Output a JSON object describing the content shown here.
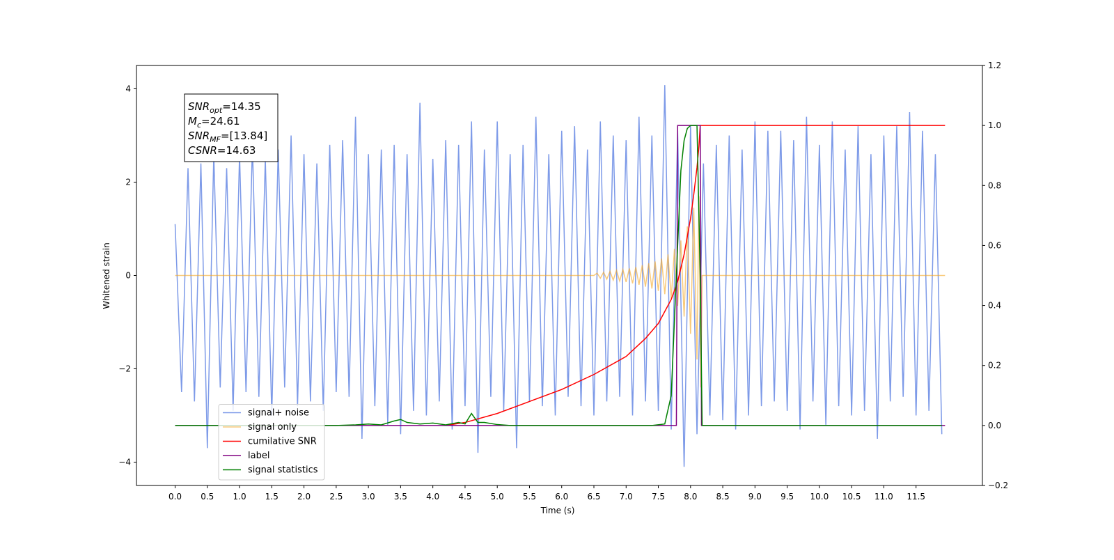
{
  "chart_data": {
    "type": "line",
    "xlabel": "Time (s)",
    "ylabel": "Whitened strain",
    "xlim": [
      -0.6,
      12.53
    ],
    "ylim": [
      -4.5,
      4.5
    ],
    "y2lim": [
      -0.2,
      1.2
    ],
    "xticks": [
      {
        "value": 0,
        "label": "0.0"
      },
      0.5,
      {
        "value": 1,
        "label": "1.0"
      },
      1.5,
      {
        "value": 2,
        "label": "2.0"
      },
      2.5,
      {
        "value": 3,
        "label": "3.0"
      },
      3.5,
      {
        "value": 4,
        "label": "4.0"
      },
      4.5,
      {
        "value": 5,
        "label": "5.0"
      },
      5.5,
      {
        "value": 6,
        "label": "6.0"
      },
      6.5,
      {
        "value": 7,
        "label": "7.0"
      },
      7.5,
      {
        "value": 8,
        "label": "8.0"
      },
      8.5,
      {
        "value": 9,
        "label": "9.0"
      },
      9.5,
      {
        "value": 10,
        "label": "10.0"
      },
      10.5,
      {
        "value": 11,
        "label": "11.0"
      },
      11.5
    ],
    "yticks": [
      {
        "value": -4,
        "label": "−4"
      },
      {
        "value": -2,
        "label": "−2"
      },
      0,
      2,
      4
    ],
    "y2ticks": [
      {
        "value": -0.2,
        "label": "−0.2"
      },
      {
        "value": 0,
        "label": "0.0"
      },
      0.2,
      0.4,
      0.6,
      0.8,
      {
        "value": 1,
        "label": "1.0"
      },
      1.2
    ],
    "annotations": [
      {
        "base": "SNR",
        "sub": "opt",
        "text": "=14.35"
      },
      {
        "base": "M",
        "sub": "c",
        "text": "=24.61"
      },
      {
        "base": "SNR",
        "sub": "MF",
        "text": "=[13.84]"
      },
      {
        "base": "CSNR",
        "text": "=14.63"
      }
    ],
    "legend": "lower left",
    "series": [
      {
        "name": "signal+ noise",
        "color": "#6f8fe6",
        "opacity": 0.9,
        "x": [
          0,
          0.1,
          0.2,
          0.3,
          0.4,
          0.5,
          0.6,
          0.7,
          0.8,
          0.9,
          1,
          1.1,
          1.2,
          1.3,
          1.4,
          1.5,
          1.6,
          1.7,
          1.8,
          1.9,
          2,
          2.1,
          2.2,
          2.3,
          2.4,
          2.5,
          2.6,
          2.7,
          2.8,
          2.9,
          3,
          3.1,
          3.2,
          3.3,
          3.4,
          3.5,
          3.6,
          3.7,
          3.8,
          3.9,
          4,
          4.1,
          4.2,
          4.3,
          4.4,
          4.5,
          4.6,
          4.7,
          4.8,
          4.9,
          5,
          5.1,
          5.2,
          5.3,
          5.4,
          5.5,
          5.6,
          5.7,
          5.8,
          5.9,
          6,
          6.1,
          6.2,
          6.3,
          6.4,
          6.5,
          6.6,
          6.7,
          6.8,
          6.9,
          7,
          7.1,
          7.2,
          7.3,
          7.4,
          7.5,
          7.6,
          7.7,
          7.8,
          7.9,
          8,
          8.1,
          8.2,
          8.3,
          8.4,
          8.5,
          8.6,
          8.7,
          8.8,
          8.9,
          9,
          9.1,
          9.2,
          9.3,
          9.4,
          9.5,
          9.6,
          9.7,
          9.8,
          9.9,
          10,
          10.1,
          10.2,
          10.3,
          10.4,
          10.5,
          10.6,
          10.7,
          10.8,
          10.9,
          11,
          11.1,
          11.2,
          11.3,
          11.4,
          11.5,
          11.6,
          11.7,
          11.8,
          11.9
        ],
        "values": [
          1.1,
          -2.5,
          2.3,
          -2.7,
          2.4,
          -3.7,
          2.6,
          -2.4,
          2.3,
          -2.9,
          2.6,
          -2.5,
          2.8,
          -2.6,
          2.5,
          -3.0,
          2.7,
          -2.4,
          3.0,
          -2.8,
          2.6,
          -2.7,
          2.4,
          -2.9,
          2.8,
          -2.5,
          2.9,
          -2.6,
          3.4,
          -3.5,
          2.6,
          -2.8,
          2.7,
          -3.2,
          2.8,
          -3.4,
          2.6,
          -2.9,
          3.7,
          -3.0,
          2.5,
          -2.7,
          2.9,
          -3.3,
          2.8,
          -2.8,
          3.3,
          -3.8,
          2.7,
          -2.6,
          3.3,
          -2.9,
          2.6,
          -3.7,
          2.8,
          -2.7,
          3.4,
          -2.8,
          2.6,
          -3.0,
          3.1,
          -2.6,
          3.2,
          -2.8,
          2.7,
          -3.0,
          3.3,
          -2.7,
          3.0,
          -2.6,
          2.9,
          -3.0,
          3.4,
          -2.7,
          3.0,
          -2.9,
          4.08,
          -3.3,
          3.1,
          -4.1,
          3.2,
          -3.4,
          2.4,
          -3.0,
          2.8,
          -3.1,
          3.0,
          -3.3,
          2.7,
          -3.0,
          3.3,
          -2.8,
          3.1,
          -2.7,
          3.1,
          -2.9,
          2.9,
          -3.3,
          3.4,
          -2.7,
          2.8,
          -3.2,
          3.3,
          -2.8,
          2.7,
          -3.0,
          3.2,
          -2.9,
          2.6,
          -3.5,
          3.0,
          -2.7,
          3.2,
          -2.6,
          3.5,
          -3.0,
          3.1,
          -2.9,
          2.6,
          -3.4
        ]
      },
      {
        "name": "signal only",
        "color": "#f5a623",
        "opacity": 0.6,
        "x": [
          0,
          6.5,
          6.55,
          6.6,
          6.65,
          6.7,
          6.75,
          6.8,
          6.85,
          6.9,
          6.95,
          7,
          7.05,
          7.1,
          7.15,
          7.2,
          7.25,
          7.3,
          7.35,
          7.4,
          7.45,
          7.5,
          7.55,
          7.6,
          7.65,
          7.7,
          7.75,
          7.8,
          7.85,
          7.9,
          7.95,
          8,
          8.05,
          8.1,
          8.13,
          8.16,
          8.18,
          11.95
        ],
        "values": [
          0,
          0,
          0.05,
          -0.06,
          0.07,
          -0.08,
          0.09,
          -0.1,
          0.11,
          -0.12,
          0.13,
          -0.14,
          0.15,
          -0.17,
          0.18,
          -0.2,
          0.22,
          -0.24,
          0.26,
          -0.28,
          0.3,
          -0.33,
          0.36,
          -0.4,
          0.45,
          -0.5,
          0.57,
          -0.65,
          0.75,
          -0.88,
          1.05,
          -1.25,
          1.45,
          -1.8,
          1.7,
          -2.4,
          0,
          0
        ]
      },
      {
        "name": "cumilative SNR",
        "color": "#ff0000",
        "axis": "y2",
        "x": [
          4.2,
          4.5,
          5,
          5.5,
          6,
          6.5,
          7,
          7.3,
          7.5,
          7.7,
          7.8,
          7.9,
          8,
          8.05,
          8.1,
          8.13,
          8.15,
          11.95
        ],
        "values": [
          0,
          0.01,
          0.04,
          0.08,
          0.12,
          0.17,
          0.23,
          0.29,
          0.34,
          0.42,
          0.48,
          0.57,
          0.69,
          0.77,
          0.86,
          0.93,
          1,
          1
        ]
      },
      {
        "name": "label",
        "color": "#800080",
        "axis": "y2",
        "x": [
          0,
          7.78,
          7.8,
          8.15,
          8.17,
          11.95
        ],
        "values": [
          0,
          0,
          1,
          1,
          0,
          0
        ]
      },
      {
        "name": "signal statistics",
        "color": "#008000",
        "axis": "y2",
        "x": [
          0,
          2.5,
          2.8,
          3,
          3.2,
          3.4,
          3.5,
          3.6,
          3.8,
          4,
          4.2,
          4.4,
          4.5,
          4.6,
          4.7,
          4.8,
          5,
          5.2,
          7.4,
          7.6,
          7.7,
          7.8,
          7.85,
          7.9,
          7.95,
          8,
          8.1,
          8.15,
          8.18,
          11.9
        ],
        "values": [
          0,
          0,
          0.002,
          0.005,
          0.002,
          0.015,
          0.02,
          0.01,
          0.005,
          0.008,
          0.002,
          0.01,
          0.005,
          0.04,
          0.01,
          0.01,
          0.003,
          0,
          0,
          0.005,
          0.1,
          0.6,
          0.85,
          0.95,
          0.99,
          1,
          1,
          0.5,
          0,
          0
        ]
      }
    ]
  }
}
